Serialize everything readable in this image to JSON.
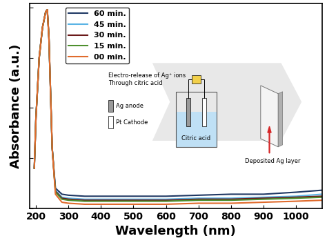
{
  "chart_data": {
    "type": "line",
    "xlabel": "Wavelength (nm)",
    "ylabel": "Absorbance (a.u.)",
    "x": [
      195,
      200,
      210,
      220,
      230,
      235,
      240,
      250,
      260,
      280,
      300,
      350,
      400,
      500,
      600,
      700,
      800,
      900,
      1000,
      1080
    ],
    "series": [
      {
        "name": "60 min.",
        "color": "#1f3864",
        "values": [
          0.2,
          0.45,
          0.75,
          0.9,
          0.98,
          0.99,
          0.85,
          0.3,
          0.1,
          0.07,
          0.065,
          0.06,
          0.06,
          0.06,
          0.06,
          0.065,
          0.07,
          0.07,
          0.08,
          0.09
        ]
      },
      {
        "name": "45 min.",
        "color": "#5bb4e5",
        "values": [
          0.2,
          0.45,
          0.75,
          0.9,
          0.98,
          0.99,
          0.85,
          0.3,
          0.09,
          0.055,
          0.05,
          0.045,
          0.045,
          0.045,
          0.045,
          0.05,
          0.05,
          0.055,
          0.06,
          0.07
        ]
      },
      {
        "name": "30 min.",
        "color": "#6b1a1a",
        "values": [
          0.2,
          0.45,
          0.75,
          0.9,
          0.98,
          0.99,
          0.85,
          0.3,
          0.085,
          0.05,
          0.045,
          0.04,
          0.04,
          0.04,
          0.04,
          0.045,
          0.045,
          0.05,
          0.055,
          0.06
        ]
      },
      {
        "name": "15 min.",
        "color": "#4e8f2e",
        "values": [
          0.2,
          0.45,
          0.75,
          0.9,
          0.98,
          0.99,
          0.85,
          0.3,
          0.08,
          0.045,
          0.04,
          0.035,
          0.035,
          0.035,
          0.035,
          0.04,
          0.04,
          0.045,
          0.05,
          0.055
        ]
      },
      {
        "name": "00 min.",
        "color": "#e06b2d",
        "values": [
          0.2,
          0.45,
          0.75,
          0.9,
          0.98,
          0.99,
          0.85,
          0.3,
          0.07,
          0.03,
          0.025,
          0.02,
          0.02,
          0.02,
          0.02,
          0.025,
          0.025,
          0.03,
          0.035,
          0.04
        ]
      }
    ],
    "xlim": [
      180,
      1080
    ],
    "ylim": [
      0,
      1.02
    ],
    "xticks": [
      200,
      300,
      400,
      500,
      600,
      700,
      800,
      900,
      1000
    ],
    "yticks": [
      0.0,
      0.25,
      0.5,
      0.75,
      1.0
    ],
    "tick_labels": "x",
    "legend": "upper left",
    "annotations": [
      "Electro-release of Ag⁺ ions\nThrough citric acid",
      "Ag anode",
      "Pt Cathode",
      "Citric acid",
      "Deposited Ag layer"
    ]
  }
}
